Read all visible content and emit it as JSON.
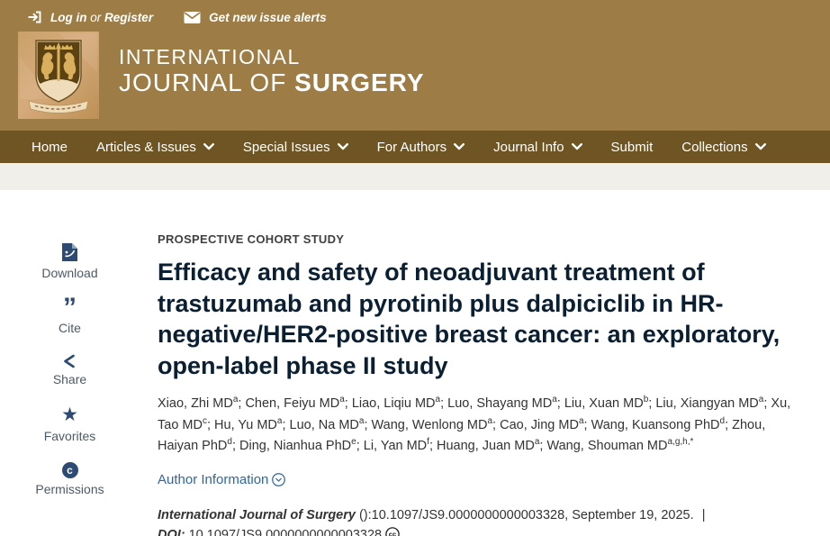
{
  "utility_bar": {
    "login_icon": "sign-in-icon",
    "login_label": "Log in",
    "or_label": "or",
    "register_label": "Register",
    "alerts_icon": "envelope-icon",
    "alerts_label": "Get new issue alerts"
  },
  "brand": {
    "logo_icon": "journal-crest-logo",
    "line1": "INTERNATIONAL",
    "line2_regular": "JOURNAL OF ",
    "line2_bold": "SURGERY"
  },
  "nav": {
    "dropdown_icon": "chevron-down-icon",
    "items": [
      {
        "label": "Home",
        "dropdown": false
      },
      {
        "label": "Articles & Issues",
        "dropdown": true
      },
      {
        "label": "Special Issues",
        "dropdown": true
      },
      {
        "label": "For Authors",
        "dropdown": true
      },
      {
        "label": "Journal Info",
        "dropdown": true
      },
      {
        "label": "Submit",
        "dropdown": false
      },
      {
        "label": "Collections",
        "dropdown": true
      }
    ]
  },
  "toolbar": {
    "items": [
      {
        "icon": "pdf-download-icon",
        "label": "Download"
      },
      {
        "icon": "cite-quote-icon",
        "label": "Cite"
      },
      {
        "icon": "share-icon",
        "label": "Share"
      },
      {
        "icon": "star-icon",
        "label": "Favorites"
      },
      {
        "icon": "copyright-icon",
        "label": "Permissions"
      }
    ]
  },
  "article": {
    "category": "PROSPECTIVE COHORT STUDY",
    "title": "Efficacy and safety of neoadjuvant treatment of trastuzumab and pyrotinib plus dalpiciclib in HR-negative/HER2-positive breast cancer: an exploratory, open-label phase II study",
    "authors": [
      {
        "name": "Xiao, Zhi MD",
        "sup": "a"
      },
      {
        "name": "Chen, Feiyu MD",
        "sup": "a"
      },
      {
        "name": "Liao, Liqiu MD",
        "sup": "a"
      },
      {
        "name": "Luo, Shayang MD",
        "sup": "a"
      },
      {
        "name": "Liu, Xuan MD",
        "sup": "b"
      },
      {
        "name": "Liu, Xiangyan MD",
        "sup": "a"
      },
      {
        "name": "Xu, Tao MD",
        "sup": "c"
      },
      {
        "name": "Hu, Yu MD",
        "sup": "a"
      },
      {
        "name": "Luo, Na MD",
        "sup": "a"
      },
      {
        "name": "Wang, Wenlong MD",
        "sup": "a"
      },
      {
        "name": "Cao, Jing MD",
        "sup": "a"
      },
      {
        "name": "Wang, Kuansong PhD",
        "sup": "d"
      },
      {
        "name": "Zhou, Haiyan PhD",
        "sup": "d"
      },
      {
        "name": "Ding, Nianhua PhD",
        "sup": "e"
      },
      {
        "name": "Li, Yan MD",
        "sup": "f"
      },
      {
        "name": "Huang, Juan MD",
        "sup": "a"
      },
      {
        "name": "Wang, Shouman MD",
        "sup": "a,g,h,*"
      }
    ],
    "author_info_label": "Author Information",
    "author_info_icon": "circle-chevron-down-icon",
    "citation": {
      "journal": "International Journal of Surgery",
      "issue": " ():",
      "locator": "10.1097/JS9.0000000000003328",
      "date": ", September 19, 2025.",
      "divider": "|",
      "doi_label": "DOI:",
      "doi": "10.1097/JS9.0000000000003328",
      "license_icon": "cc-icon"
    }
  },
  "colors": {
    "masthead_brown": "#9d7c46",
    "nav_brown": "#6f5523",
    "subnav_gray": "#f1efea",
    "icon_navy": "#2d4a72",
    "title_navy": "#0b1f33",
    "link_blue": "#2e66a3",
    "body_text": "#333333"
  }
}
